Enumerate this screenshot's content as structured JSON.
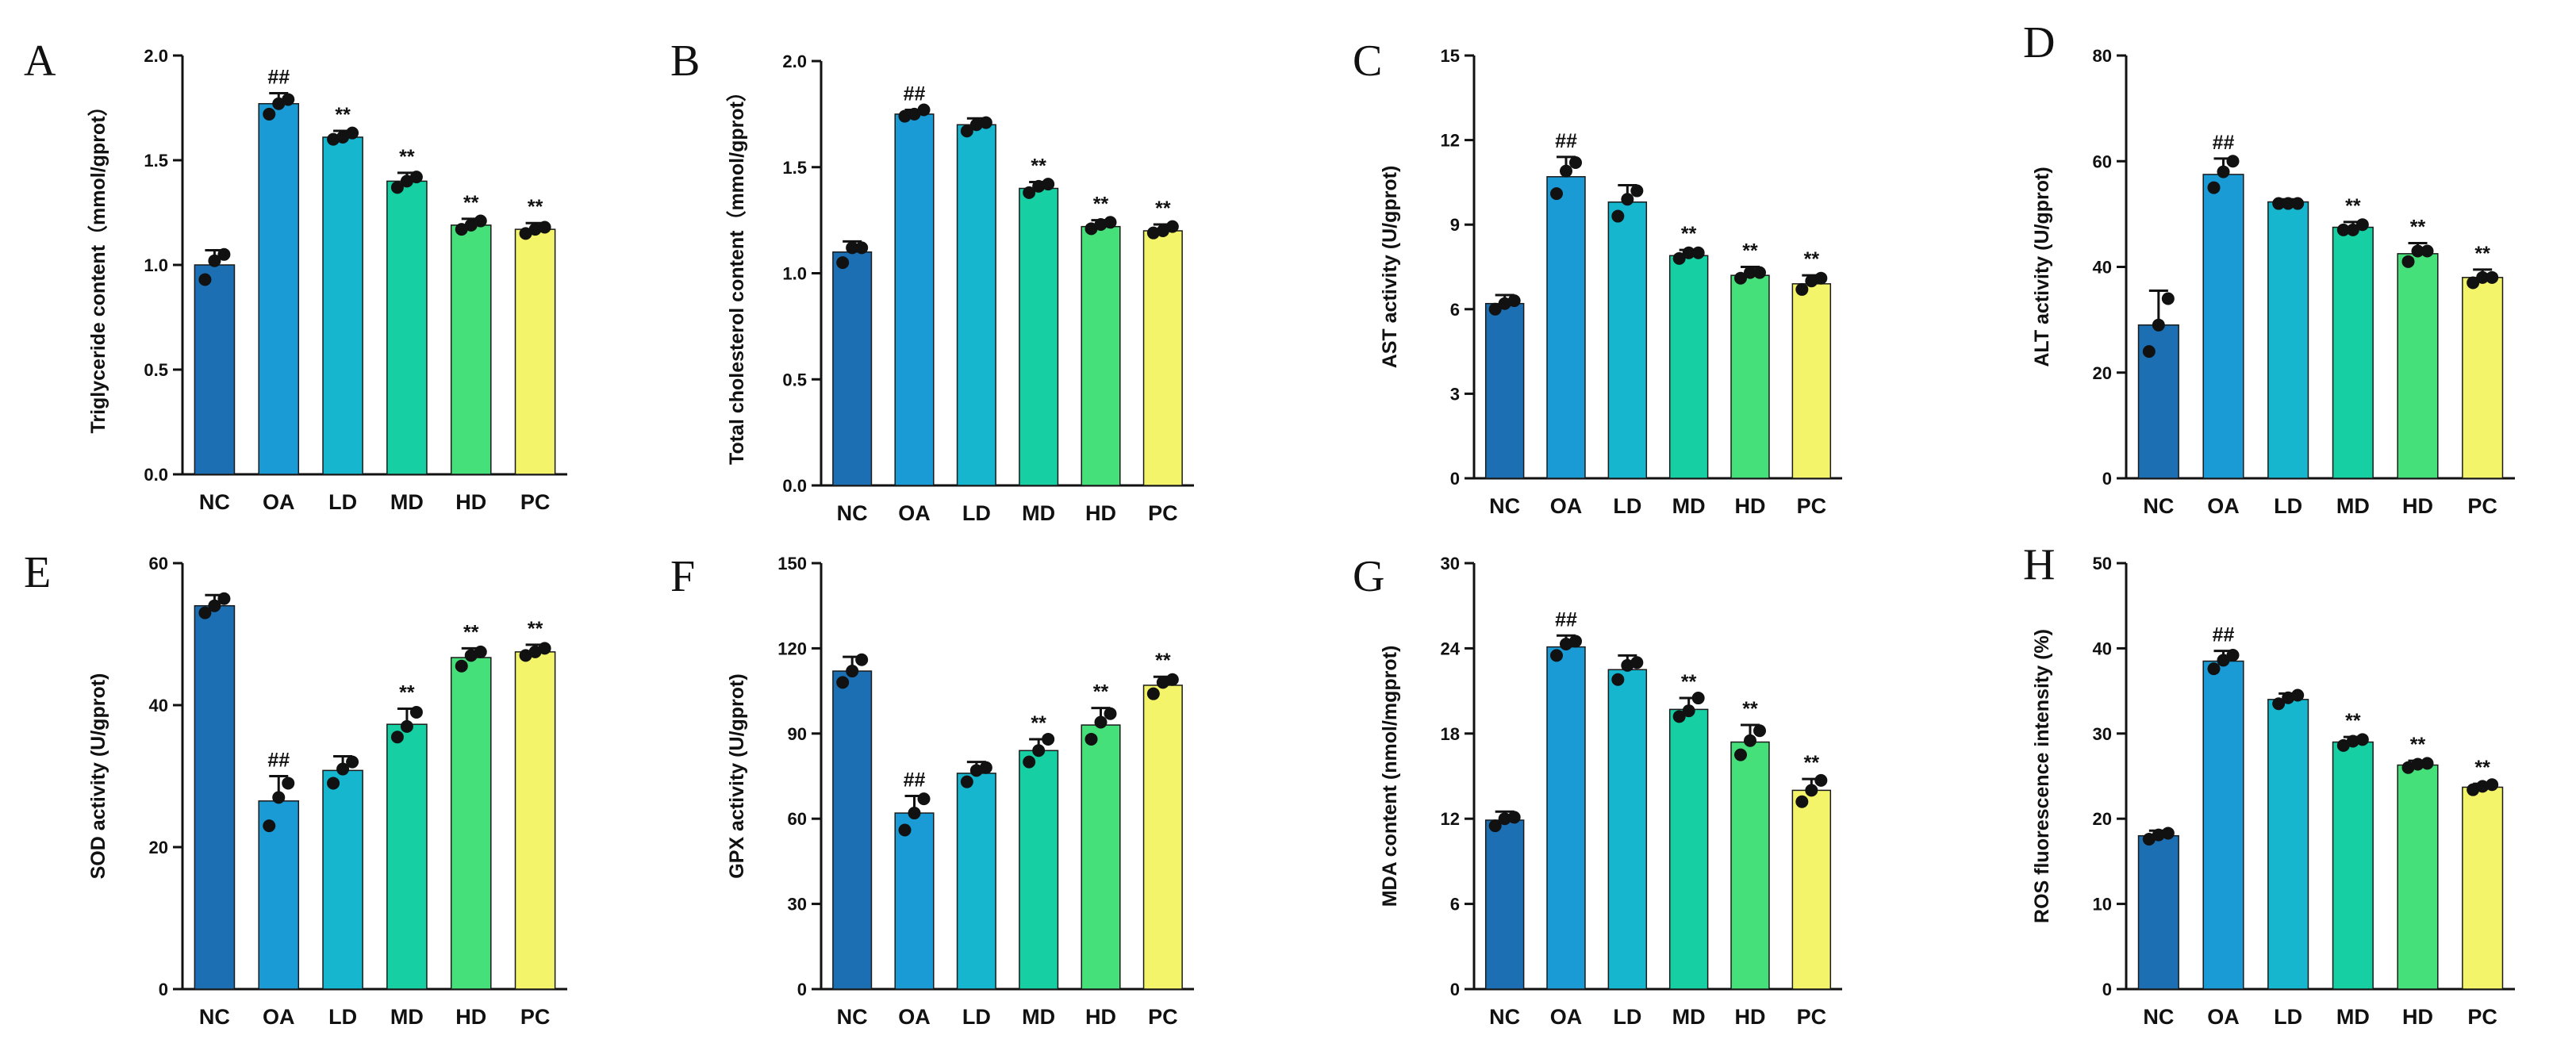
{
  "colors": {
    "bars": [
      "#1c6fb3",
      "#1a9bd6",
      "#16b6cf",
      "#16cfa2",
      "#46e07a",
      "#f4f46a"
    ],
    "ink": "#111111"
  },
  "chart_data": [
    {
      "type": "bar",
      "panel": "A",
      "categories": [
        "NC",
        "OA",
        "LD",
        "MD",
        "HD",
        "PC"
      ],
      "values": [
        1.0,
        1.77,
        1.61,
        1.4,
        1.19,
        1.17
      ],
      "errors": [
        0.07,
        0.05,
        0.03,
        0.04,
        0.03,
        0.03
      ],
      "points": [
        [
          0.93,
          1.02,
          1.05
        ],
        [
          1.72,
          1.77,
          1.79
        ],
        [
          1.6,
          1.61,
          1.63
        ],
        [
          1.37,
          1.4,
          1.42
        ],
        [
          1.17,
          1.19,
          1.21
        ],
        [
          1.15,
          1.17,
          1.18
        ]
      ],
      "significance": [
        "",
        "##",
        "**",
        "**",
        "**",
        "**"
      ],
      "ylabel": "Triglyceride content（mmol/gprot）",
      "ylim": [
        0,
        2.0
      ],
      "yticks": [
        "0.0",
        "0.5",
        "1.0",
        "1.5",
        "2.0"
      ],
      "tickStep": 0.5
    },
    {
      "type": "bar",
      "panel": "B",
      "categories": [
        "NC",
        "OA",
        "LD",
        "MD",
        "HD",
        "PC"
      ],
      "values": [
        1.1,
        1.75,
        1.7,
        1.4,
        1.22,
        1.2
      ],
      "errors": [
        0.05,
        0.02,
        0.03,
        0.03,
        0.03,
        0.03
      ],
      "points": [
        [
          1.05,
          1.12,
          1.12
        ],
        [
          1.74,
          1.75,
          1.77
        ],
        [
          1.67,
          1.7,
          1.71
        ],
        [
          1.38,
          1.41,
          1.42
        ],
        [
          1.21,
          1.23,
          1.24
        ],
        [
          1.19,
          1.2,
          1.22
        ]
      ],
      "significance": [
        "",
        "##",
        "",
        "**",
        "**",
        "**"
      ],
      "ylabel": "Total cholesterol content（mmol/gprot）",
      "ylim": [
        0,
        2.0
      ],
      "yticks": [
        "0.0",
        "0.5",
        "1.0",
        "1.5",
        "2.0"
      ],
      "tickStep": 0.5
    },
    {
      "type": "bar",
      "panel": "C",
      "categories": [
        "NC",
        "OA",
        "LD",
        "MD",
        "HD",
        "PC"
      ],
      "values": [
        6.2,
        10.7,
        9.8,
        7.9,
        7.2,
        6.9
      ],
      "errors": [
        0.3,
        0.7,
        0.6,
        0.2,
        0.3,
        0.3
      ],
      "points": [
        [
          6.0,
          6.2,
          6.3
        ],
        [
          10.1,
          10.9,
          11.2
        ],
        [
          9.3,
          9.9,
          10.2
        ],
        [
          7.8,
          8.0,
          8.0
        ],
        [
          7.1,
          7.3,
          7.3
        ],
        [
          6.7,
          7.0,
          7.1
        ]
      ],
      "significance": [
        "",
        "##",
        "",
        "**",
        "**",
        "**"
      ],
      "ylabel": "AST activity (U/gprot)",
      "ylim": [
        0,
        15
      ],
      "yticks": [
        "0",
        "3",
        "6",
        "9",
        "12",
        "15"
      ],
      "tickStep": 3
    },
    {
      "type": "bar",
      "panel": "D",
      "categories": [
        "NC",
        "OA",
        "LD",
        "MD",
        "HD",
        "PC"
      ],
      "values": [
        29,
        57.5,
        52.3,
        47.5,
        42.5,
        38
      ],
      "errors": [
        6.5,
        3.0,
        0.5,
        1.0,
        2.0,
        1.5
      ],
      "points": [
        [
          24,
          29,
          34
        ],
        [
          55,
          58,
          60
        ],
        [
          52,
          52,
          52
        ],
        [
          47,
          47,
          48
        ],
        [
          41,
          43,
          43
        ],
        [
          37,
          38,
          38
        ]
      ],
      "significance": [
        "",
        "##",
        "",
        "**",
        "**",
        "**"
      ],
      "ylabel": "ALT activity (U/gprot)",
      "ylim": [
        0,
        80
      ],
      "yticks": [
        "0",
        "20",
        "40",
        "60",
        "80"
      ],
      "tickStep": 20
    },
    {
      "type": "bar",
      "panel": "E",
      "categories": [
        "NC",
        "OA",
        "LD",
        "MD",
        "HD",
        "PC"
      ],
      "values": [
        54,
        26.5,
        30.8,
        37.3,
        46.7,
        47.5
      ],
      "errors": [
        1.5,
        3.5,
        2.0,
        2.2,
        1.3,
        1.0
      ],
      "points": [
        [
          53,
          54,
          55
        ],
        [
          23,
          27,
          29
        ],
        [
          29,
          31,
          32
        ],
        [
          35.5,
          37,
          39
        ],
        [
          45.5,
          47,
          47.5
        ],
        [
          47,
          47.5,
          48
        ]
      ],
      "significance": [
        "",
        "##",
        "",
        "**",
        "**",
        "**"
      ],
      "ylabel": "SOD activity (U/gprot)",
      "ylim": [
        0,
        60
      ],
      "yticks": [
        "0",
        "20",
        "40",
        "60"
      ],
      "tickStep": 20
    },
    {
      "type": "bar",
      "panel": "F",
      "categories": [
        "NC",
        "OA",
        "LD",
        "MD",
        "HD",
        "PC"
      ],
      "values": [
        112,
        62,
        76,
        84,
        93,
        107
      ],
      "errors": [
        5,
        6,
        4,
        4,
        6,
        3
      ],
      "points": [
        [
          108,
          112,
          116
        ],
        [
          56,
          62,
          67
        ],
        [
          73,
          77,
          78
        ],
        [
          80,
          84,
          88
        ],
        [
          88,
          94,
          97
        ],
        [
          104,
          108,
          109
        ]
      ],
      "significance": [
        "",
        "##",
        "",
        "**",
        "**",
        "**"
      ],
      "ylabel": "GPX activity (U/gprot)",
      "ylim": [
        0,
        150
      ],
      "yticks": [
        "0",
        "30",
        "60",
        "90",
        "120",
        "150"
      ],
      "tickStep": 30
    },
    {
      "type": "bar",
      "panel": "G",
      "categories": [
        "NC",
        "OA",
        "LD",
        "MD",
        "HD",
        "PC"
      ],
      "values": [
        11.9,
        24.1,
        22.5,
        19.7,
        17.4,
        14
      ],
      "errors": [
        0.6,
        0.8,
        1.0,
        0.8,
        1.2,
        0.8
      ],
      "points": [
        [
          11.5,
          12.0,
          12.1
        ],
        [
          23.5,
          24.3,
          24.5
        ],
        [
          21.8,
          22.8,
          23.0
        ],
        [
          19.2,
          19.6,
          20.5
        ],
        [
          16.5,
          17.5,
          18.2
        ],
        [
          13.2,
          14.0,
          14.7
        ]
      ],
      "significance": [
        "",
        "##",
        "",
        "**",
        "**",
        "**"
      ],
      "ylabel": "MDA content (nmol/mgprot)",
      "ylim": [
        0,
        30
      ],
      "yticks": [
        "0",
        "6",
        "12",
        "18",
        "24",
        "30"
      ],
      "tickStep": 6
    },
    {
      "type": "bar",
      "panel": "H",
      "categories": [
        "NC",
        "OA",
        "LD",
        "MD",
        "HD",
        "PC"
      ],
      "values": [
        18,
        38.5,
        34,
        29,
        26.3,
        23.7
      ],
      "errors": [
        0.6,
        1.2,
        0.7,
        0.6,
        0.5,
        0.4
      ],
      "points": [
        [
          17.6,
          18.1,
          18.3
        ],
        [
          37.6,
          38.6,
          39.2
        ],
        [
          33.5,
          34.2,
          34.5
        ],
        [
          28.6,
          29.1,
          29.3
        ],
        [
          26.0,
          26.4,
          26.5
        ],
        [
          23.4,
          23.8,
          24.0
        ]
      ],
      "significance": [
        "",
        "##",
        "",
        "**",
        "**",
        "**"
      ],
      "ylabel": "ROS fluorescence intensity (%)",
      "ylim": [
        0,
        50
      ],
      "yticks": [
        "0",
        "10",
        "20",
        "30",
        "40",
        "50"
      ],
      "tickStep": 10
    }
  ]
}
